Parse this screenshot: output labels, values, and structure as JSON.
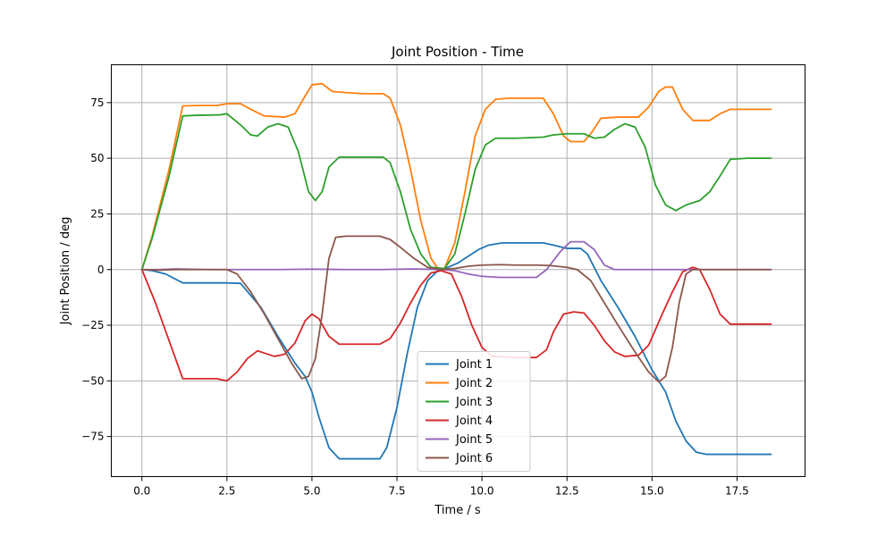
{
  "chart_data": {
    "type": "line",
    "title": "Joint Position - Time",
    "xlabel": "Time / s",
    "ylabel": "Joint Position / deg",
    "xlim": [
      -0.9,
      19.5
    ],
    "ylim": [
      -93,
      92
    ],
    "xticks": [
      0.0,
      2.5,
      5.0,
      7.5,
      10.0,
      12.5,
      15.0,
      17.5
    ],
    "xtick_labels": [
      "0.0",
      "2.5",
      "5.0",
      "7.5",
      "10.0",
      "12.5",
      "15.0",
      "17.5"
    ],
    "yticks": [
      -75,
      -50,
      -25,
      0,
      25,
      50,
      75
    ],
    "ytick_labels": [
      "−75",
      "−50",
      "−25",
      "0",
      "25",
      "50",
      "75"
    ],
    "grid": true,
    "legend_position": "bottom-center",
    "series": [
      {
        "name": "Joint 1",
        "color": "#1f77b4",
        "points": [
          [
            0,
            0
          ],
          [
            0.3,
            -0.5
          ],
          [
            0.7,
            -2
          ],
          [
            1.2,
            -6
          ],
          [
            1.5,
            -6
          ],
          [
            2.5,
            -6
          ],
          [
            2.9,
            -6.2
          ],
          [
            3.5,
            -17
          ],
          [
            4.0,
            -30
          ],
          [
            4.5,
            -42
          ],
          [
            4.8,
            -48
          ],
          [
            5.0,
            -55
          ],
          [
            5.2,
            -66
          ],
          [
            5.5,
            -80
          ],
          [
            5.8,
            -85
          ],
          [
            6.5,
            -85
          ],
          [
            7.0,
            -85
          ],
          [
            7.2,
            -80
          ],
          [
            7.5,
            -62
          ],
          [
            7.8,
            -38
          ],
          [
            8.1,
            -17
          ],
          [
            8.4,
            -5
          ],
          [
            8.7,
            -0.5
          ],
          [
            9.0,
            1
          ],
          [
            9.3,
            3
          ],
          [
            9.6,
            6
          ],
          [
            9.9,
            9
          ],
          [
            10.2,
            11
          ],
          [
            10.6,
            12
          ],
          [
            11.0,
            12
          ],
          [
            11.8,
            12
          ],
          [
            12.1,
            11
          ],
          [
            12.5,
            9.5
          ],
          [
            12.9,
            9.5
          ],
          [
            13.1,
            7
          ],
          [
            13.5,
            -5
          ],
          [
            14.0,
            -17
          ],
          [
            14.5,
            -30
          ],
          [
            15.0,
            -45
          ],
          [
            15.4,
            -55
          ],
          [
            15.7,
            -68
          ],
          [
            16.0,
            -77
          ],
          [
            16.3,
            -82
          ],
          [
            16.6,
            -83
          ],
          [
            17.5,
            -83
          ],
          [
            18.5,
            -83
          ]
        ]
      },
      {
        "name": "Joint 2",
        "color": "#ff7f0e",
        "points": [
          [
            0,
            0
          ],
          [
            0.3,
            15
          ],
          [
            0.8,
            45
          ],
          [
            1.2,
            73.5
          ],
          [
            1.6,
            73.7
          ],
          [
            2.2,
            73.7
          ],
          [
            2.5,
            74.5
          ],
          [
            2.9,
            74.5
          ],
          [
            3.2,
            72
          ],
          [
            3.6,
            69
          ],
          [
            4.2,
            68.5
          ],
          [
            4.5,
            70
          ],
          [
            4.8,
            78
          ],
          [
            5.0,
            83
          ],
          [
            5.3,
            83.5
          ],
          [
            5.6,
            80
          ],
          [
            6.0,
            79.5
          ],
          [
            6.5,
            79
          ],
          [
            7.1,
            79
          ],
          [
            7.3,
            77
          ],
          [
            7.6,
            65
          ],
          [
            7.9,
            45
          ],
          [
            8.2,
            22
          ],
          [
            8.5,
            5
          ],
          [
            8.7,
            0.5
          ],
          [
            8.9,
            0.5
          ],
          [
            9.2,
            12
          ],
          [
            9.5,
            35
          ],
          [
            9.8,
            60
          ],
          [
            10.1,
            72
          ],
          [
            10.4,
            76.5
          ],
          [
            10.8,
            77
          ],
          [
            11.8,
            77
          ],
          [
            12.1,
            70
          ],
          [
            12.4,
            60
          ],
          [
            12.6,
            57.5
          ],
          [
            13.0,
            57.5
          ],
          [
            13.2,
            61
          ],
          [
            13.5,
            68
          ],
          [
            14.0,
            68.5
          ],
          [
            14.6,
            68.5
          ],
          [
            14.9,
            73
          ],
          [
            15.2,
            80
          ],
          [
            15.4,
            82
          ],
          [
            15.6,
            82
          ],
          [
            15.9,
            72
          ],
          [
            16.2,
            67
          ],
          [
            16.7,
            67
          ],
          [
            17.0,
            70
          ],
          [
            17.3,
            72
          ],
          [
            18.5,
            72
          ]
        ]
      },
      {
        "name": "Joint 3",
        "color": "#2ca02c",
        "points": [
          [
            0,
            0
          ],
          [
            0.3,
            14
          ],
          [
            0.8,
            42
          ],
          [
            1.2,
            69
          ],
          [
            1.6,
            69.3
          ],
          [
            2.3,
            69.5
          ],
          [
            2.5,
            70
          ],
          [
            2.9,
            65
          ],
          [
            3.2,
            60.5
          ],
          [
            3.4,
            60
          ],
          [
            3.7,
            64
          ],
          [
            4.0,
            65.5
          ],
          [
            4.3,
            64
          ],
          [
            4.6,
            53
          ],
          [
            4.9,
            35
          ],
          [
            5.1,
            31
          ],
          [
            5.3,
            35
          ],
          [
            5.5,
            46
          ],
          [
            5.8,
            50.5
          ],
          [
            6.5,
            50.5
          ],
          [
            7.1,
            50.5
          ],
          [
            7.3,
            48
          ],
          [
            7.6,
            35
          ],
          [
            7.9,
            18
          ],
          [
            8.2,
            7
          ],
          [
            8.5,
            1
          ],
          [
            8.9,
            0.5
          ],
          [
            9.2,
            7
          ],
          [
            9.5,
            25
          ],
          [
            9.8,
            45
          ],
          [
            10.1,
            56
          ],
          [
            10.4,
            59
          ],
          [
            11.0,
            59
          ],
          [
            11.8,
            59.5
          ],
          [
            12.1,
            60.5
          ],
          [
            12.5,
            61
          ],
          [
            13.0,
            61
          ],
          [
            13.3,
            59
          ],
          [
            13.6,
            59.5
          ],
          [
            13.9,
            63
          ],
          [
            14.2,
            65.5
          ],
          [
            14.5,
            64
          ],
          [
            14.8,
            55
          ],
          [
            15.1,
            38
          ],
          [
            15.4,
            29
          ],
          [
            15.7,
            26.5
          ],
          [
            16.0,
            29
          ],
          [
            16.4,
            31
          ],
          [
            16.7,
            35
          ],
          [
            17.0,
            42
          ],
          [
            17.3,
            49.5
          ],
          [
            17.8,
            50
          ],
          [
            18.5,
            50
          ]
        ]
      },
      {
        "name": "Joint 4",
        "color": "#d62728",
        "points": [
          [
            0,
            0
          ],
          [
            0.4,
            -15
          ],
          [
            0.8,
            -32
          ],
          [
            1.2,
            -49
          ],
          [
            1.6,
            -49
          ],
          [
            2.2,
            -49
          ],
          [
            2.5,
            -50
          ],
          [
            2.8,
            -46
          ],
          [
            3.1,
            -40
          ],
          [
            3.4,
            -36.5
          ],
          [
            3.6,
            -37.5
          ],
          [
            3.9,
            -39
          ],
          [
            4.2,
            -38
          ],
          [
            4.5,
            -33
          ],
          [
            4.8,
            -23
          ],
          [
            5.0,
            -20
          ],
          [
            5.2,
            -22
          ],
          [
            5.5,
            -30
          ],
          [
            5.8,
            -33.5
          ],
          [
            6.5,
            -33.5
          ],
          [
            7.0,
            -33.5
          ],
          [
            7.3,
            -31
          ],
          [
            7.6,
            -24
          ],
          [
            7.9,
            -15
          ],
          [
            8.2,
            -7
          ],
          [
            8.5,
            -1.5
          ],
          [
            8.8,
            -0.5
          ],
          [
            9.1,
            -2
          ],
          [
            9.4,
            -12
          ],
          [
            9.7,
            -25
          ],
          [
            10.0,
            -35
          ],
          [
            10.3,
            -39
          ],
          [
            11.0,
            -39.5
          ],
          [
            11.6,
            -39.5
          ],
          [
            11.9,
            -36
          ],
          [
            12.1,
            -28
          ],
          [
            12.4,
            -20
          ],
          [
            12.7,
            -19
          ],
          [
            13.0,
            -19.5
          ],
          [
            13.3,
            -25
          ],
          [
            13.6,
            -32
          ],
          [
            13.9,
            -37
          ],
          [
            14.2,
            -39
          ],
          [
            14.6,
            -38.5
          ],
          [
            14.9,
            -34
          ],
          [
            15.3,
            -20
          ],
          [
            15.6,
            -10
          ],
          [
            15.9,
            -1
          ],
          [
            16.2,
            1
          ],
          [
            16.4,
            0
          ],
          [
            16.7,
            -9
          ],
          [
            17.0,
            -20
          ],
          [
            17.3,
            -24.5
          ],
          [
            17.7,
            -24.5
          ],
          [
            18.5,
            -24.5
          ]
        ]
      },
      {
        "name": "Joint 5",
        "color": "#9467bd",
        "points": [
          [
            0,
            0
          ],
          [
            0.5,
            0
          ],
          [
            1.0,
            0.3
          ],
          [
            2.0,
            0
          ],
          [
            3.0,
            0
          ],
          [
            4.0,
            0
          ],
          [
            5.0,
            0.2
          ],
          [
            6.0,
            0
          ],
          [
            7.0,
            0
          ],
          [
            8.0,
            0.3
          ],
          [
            8.8,
            0
          ],
          [
            9.2,
            -0.5
          ],
          [
            9.6,
            -2
          ],
          [
            10.0,
            -3
          ],
          [
            10.5,
            -3.5
          ],
          [
            11.0,
            -3.5
          ],
          [
            11.6,
            -3.5
          ],
          [
            11.9,
            0
          ],
          [
            12.3,
            8
          ],
          [
            12.6,
            12.5
          ],
          [
            13.0,
            12.5
          ],
          [
            13.3,
            9
          ],
          [
            13.6,
            2
          ],
          [
            13.9,
            0
          ],
          [
            14.5,
            0
          ],
          [
            15.0,
            0
          ],
          [
            16.0,
            0
          ],
          [
            17.0,
            0
          ],
          [
            18.5,
            0
          ]
        ]
      },
      {
        "name": "Joint 6",
        "color": "#8c564b",
        "points": [
          [
            0,
            0
          ],
          [
            0.5,
            -0.3
          ],
          [
            1.0,
            0
          ],
          [
            1.5,
            0
          ],
          [
            2.5,
            0
          ],
          [
            2.8,
            -2
          ],
          [
            3.2,
            -10
          ],
          [
            3.6,
            -20
          ],
          [
            4.0,
            -31
          ],
          [
            4.4,
            -42
          ],
          [
            4.7,
            -49
          ],
          [
            4.9,
            -48
          ],
          [
            5.1,
            -40
          ],
          [
            5.3,
            -20
          ],
          [
            5.5,
            5
          ],
          [
            5.7,
            14.5
          ],
          [
            6.0,
            15
          ],
          [
            6.5,
            15
          ],
          [
            7.0,
            15
          ],
          [
            7.3,
            13.5
          ],
          [
            7.6,
            10
          ],
          [
            8.0,
            5
          ],
          [
            8.4,
            1
          ],
          [
            8.8,
            0
          ],
          [
            9.2,
            0.5
          ],
          [
            9.6,
            1.5
          ],
          [
            10.0,
            2
          ],
          [
            10.5,
            2.2
          ],
          [
            11.0,
            2
          ],
          [
            11.6,
            2
          ],
          [
            12.0,
            1.8
          ],
          [
            12.5,
            1
          ],
          [
            12.8,
            0
          ],
          [
            13.2,
            -5
          ],
          [
            13.6,
            -15
          ],
          [
            14.0,
            -25
          ],
          [
            14.5,
            -37
          ],
          [
            14.9,
            -46
          ],
          [
            15.2,
            -50.5
          ],
          [
            15.4,
            -48
          ],
          [
            15.6,
            -35
          ],
          [
            15.8,
            -15
          ],
          [
            16.0,
            -2
          ],
          [
            16.2,
            0
          ],
          [
            16.5,
            0
          ],
          [
            17.0,
            0
          ],
          [
            18.5,
            0
          ]
        ]
      }
    ]
  }
}
